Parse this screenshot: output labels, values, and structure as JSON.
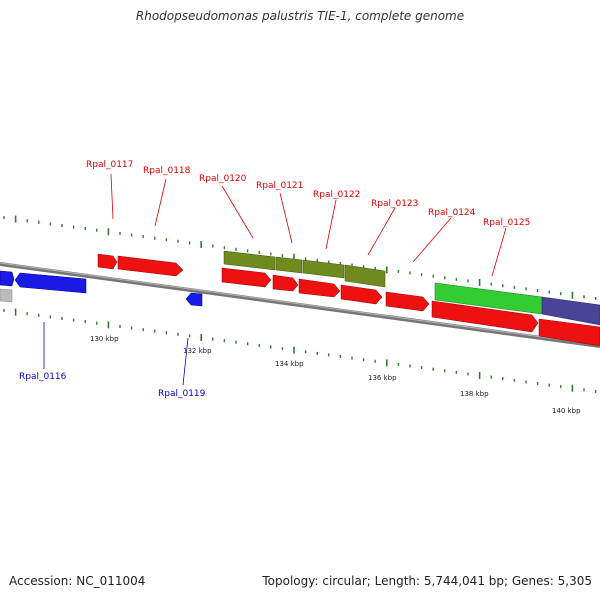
{
  "title": "Rhodopseudomonas palustris TIE-1, complete genome",
  "footer": {
    "accession": "Accession: NC_011004",
    "summary": "Topology: circular; Length: 5,744,041 bp; Genes: 5,305"
  },
  "colors": {
    "forward_gene": "#ee1111",
    "reverse_gene": "#1a1ae6",
    "olive_gene": "#6f8a1e",
    "green_gene": "#33cc33",
    "purple_gene": "#4b4496",
    "gray_gene": "#bbbbbb",
    "backbone": "#777777",
    "tick": "#2e7d2e",
    "forward_label": "#dd0000",
    "reverse_label": "#0000cc"
  },
  "scale_labels": [
    "130 kbp",
    "132 kbp",
    "134 kbp",
    "136 kbp",
    "138 kbp",
    "140 kbp"
  ],
  "gene_labels": {
    "forward": [
      "Rpal_0117",
      "Rpal_0118",
      "Rpal_0120",
      "Rpal_0121",
      "Rpal_0122",
      "Rpal_0123",
      "Rpal_0124",
      "Rpal_0125"
    ],
    "reverse": [
      "Rpal_0116",
      "Rpal_0119"
    ]
  }
}
